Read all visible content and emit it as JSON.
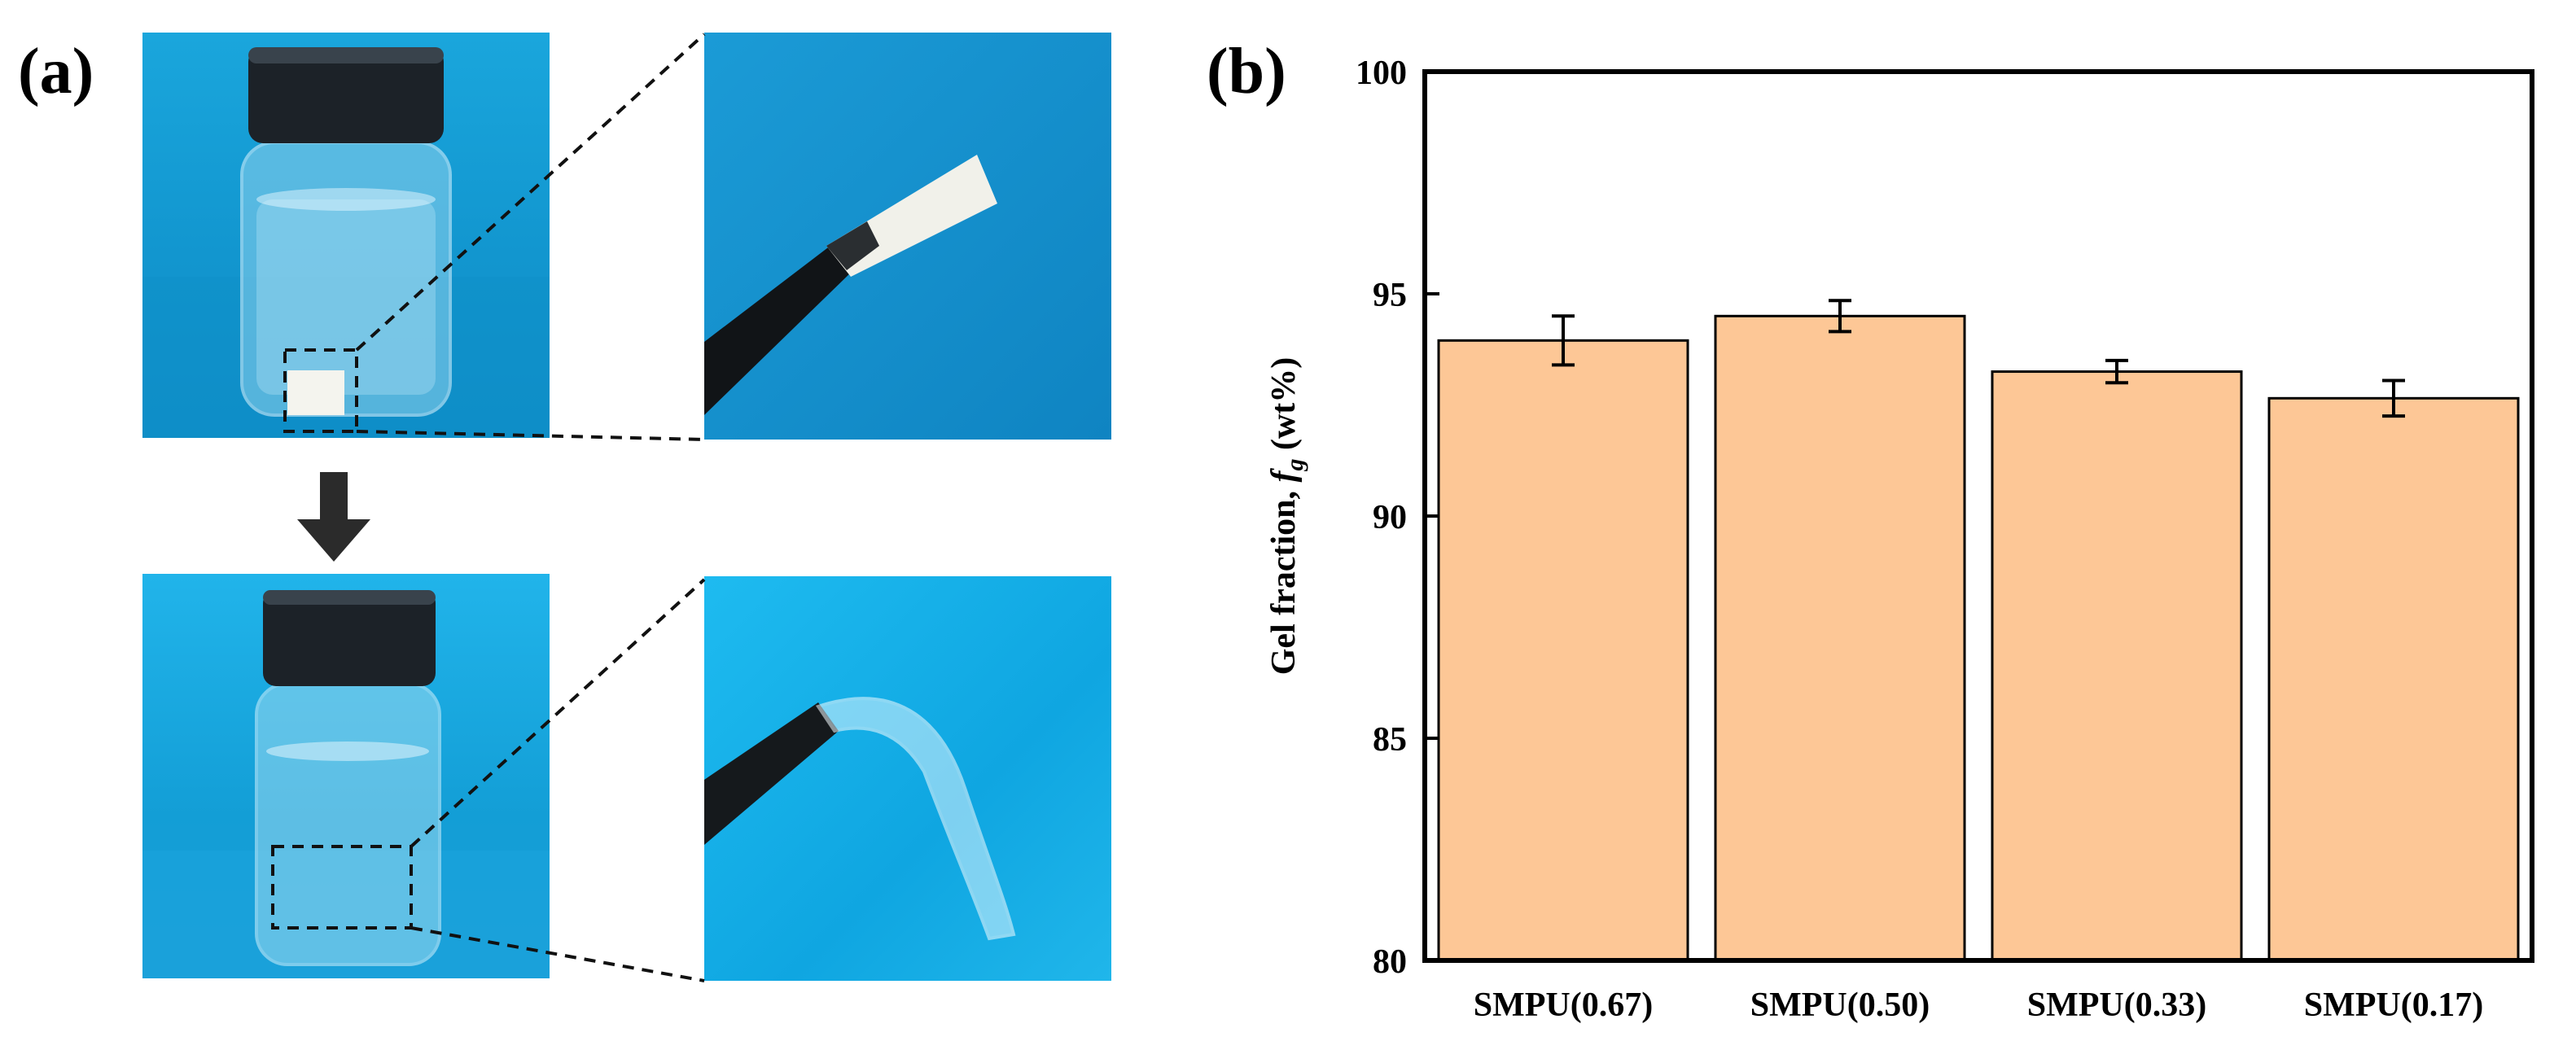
{
  "panel_a": {
    "label": "(a)"
  },
  "panel_b": {
    "label": "(b)"
  },
  "colors": {
    "bar_fill": "#FDC796",
    "bar_stroke": "#000000",
    "photo_blue": "#1596D0",
    "vial_cap": "#1c2228"
  },
  "icons": {
    "arrow": "down-arrow-icon"
  },
  "chart_data": {
    "type": "bar",
    "categories": [
      "SMPU(0.67)",
      "SMPU(0.50)",
      "SMPU(0.33)",
      "SMPU(0.17)"
    ],
    "values": [
      93.95,
      94.5,
      93.25,
      92.65
    ],
    "errors": [
      0.55,
      0.35,
      0.25,
      0.4
    ],
    "ylabel": "Gel fraction, f_g (wt%)",
    "ylabel_parts": {
      "prefix": "Gel fraction, ",
      "symbol": "f",
      "subscript": "g",
      "suffix": " (wt%)"
    },
    "ylim": [
      80,
      100
    ],
    "yticks": [
      80,
      85,
      90,
      95,
      100
    ],
    "grid": false
  }
}
